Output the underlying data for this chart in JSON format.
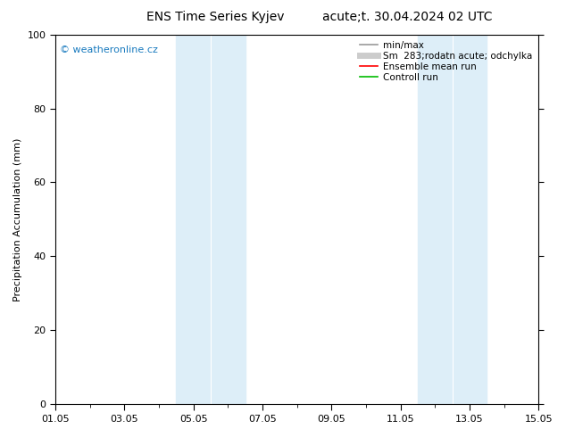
{
  "title_left": "ENS Time Series Kyjev",
  "title_right": "acute;t. 30.04.2024 02 UTC",
  "ylabel": "Precipitation Accumulation (mm)",
  "ylim": [
    0,
    100
  ],
  "yticks": [
    0,
    20,
    40,
    60,
    80,
    100
  ],
  "xlim": [
    0,
    14
  ],
  "xtick_labels": [
    "01.05",
    "03.05",
    "05.05",
    "07.05",
    "09.05",
    "11.05",
    "13.05",
    "15.05"
  ],
  "xtick_positions_days": [
    0,
    2,
    4,
    6,
    8,
    10,
    12,
    14
  ],
  "shaded_regions": [
    {
      "start_day": 3.85,
      "end_day": 4.5,
      "color": "#ddeef8"
    },
    {
      "start_day": 4.5,
      "end_day": 5.15,
      "color": "#ddeef8"
    },
    {
      "start_day": 10.85,
      "end_day": 11.5,
      "color": "#ddeef8"
    },
    {
      "start_day": 11.5,
      "end_day": 12.15,
      "color": "#ddeef8"
    }
  ],
  "legend_entries": [
    {
      "label": "min/max",
      "color": "#999999",
      "lw": 1.2
    },
    {
      "label": "Sm  283;rodatn acute; odchylka",
      "color": "#cccccc",
      "lw": 5
    },
    {
      "label": "Ensemble mean run",
      "color": "#ff0000",
      "lw": 1.2
    },
    {
      "label": "Controll run",
      "color": "#00bb00",
      "lw": 1.2
    }
  ],
  "watermark": "© weatheronline.cz",
  "watermark_color": "#1a7bbf",
  "background_color": "#ffffff",
  "plot_bg_color": "#ffffff",
  "shaded_color": "#ddeef8",
  "title_fontsize": 10,
  "axis_label_fontsize": 8,
  "tick_fontsize": 8,
  "legend_fontsize": 7.5,
  "watermark_fontsize": 8
}
